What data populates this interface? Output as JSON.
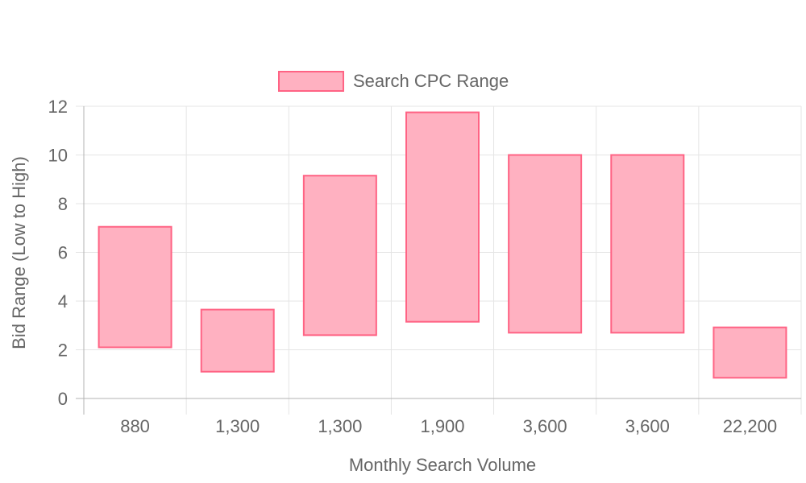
{
  "chart_data": {
    "type": "bar",
    "subtype": "floating-range",
    "categories": [
      "880",
      "1,300",
      "1,300",
      "1,900",
      "3,600",
      "3,600",
      "22,200"
    ],
    "series": [
      {
        "name": "Search CPC Range",
        "ranges": [
          [
            2.1,
            7.05
          ],
          [
            1.1,
            3.65
          ],
          [
            2.6,
            9.15
          ],
          [
            3.15,
            11.75
          ],
          [
            2.7,
            10.0
          ],
          [
            2.7,
            10.0
          ],
          [
            0.85,
            2.92
          ]
        ],
        "fill_color": "#FFB1C1",
        "border_color": "#FF6384"
      }
    ],
    "xlabel": "Monthly Search Volume",
    "ylabel": "Bid Range (Low to High)",
    "ylim": [
      0,
      12
    ],
    "yticks": [
      0,
      2,
      4,
      6,
      8,
      10,
      12
    ],
    "grid": true,
    "legend_position": "top"
  }
}
